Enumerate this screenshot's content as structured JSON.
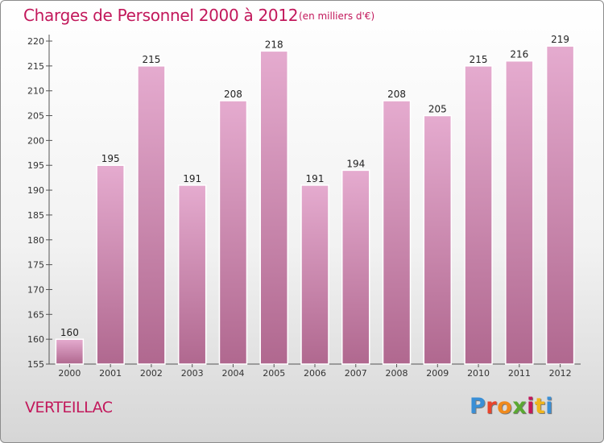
{
  "header": {
    "title": "Charges de Personnel 2000 à 2012",
    "unit": "(en milliers d'€)"
  },
  "footer": {
    "town": "VERTEILLAC",
    "logo_letters": [
      "P",
      "r",
      "o",
      "x",
      "i",
      "t",
      "i"
    ]
  },
  "colors": {
    "title": "#c2185b",
    "bar_top": "#e5abcf",
    "bar_bottom": "#b0688f",
    "logo": [
      "#3a8fd6",
      "#e8452c",
      "#f08a1c",
      "#5aa832",
      "#c2185b",
      "#f0b41c",
      "#3a8fd6"
    ]
  },
  "chart_data": {
    "type": "bar",
    "title": "Charges de Personnel 2000 à 2012",
    "categories": [
      "2000",
      "2001",
      "2002",
      "2003",
      "2004",
      "2005",
      "2006",
      "2007",
      "2008",
      "2009",
      "2010",
      "2011",
      "2012"
    ],
    "values": [
      160,
      195,
      215,
      191,
      208,
      218,
      191,
      194,
      208,
      205,
      215,
      216,
      219
    ],
    "yticks": [
      155,
      160,
      165,
      170,
      175,
      180,
      185,
      190,
      195,
      200,
      205,
      210,
      215,
      220
    ],
    "ylim": [
      155,
      220
    ],
    "grid": false,
    "legend": "none"
  }
}
